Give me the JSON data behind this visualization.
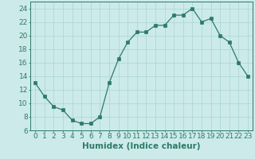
{
  "x": [
    0,
    1,
    2,
    3,
    4,
    5,
    6,
    7,
    8,
    9,
    10,
    11,
    12,
    13,
    14,
    15,
    16,
    17,
    18,
    19,
    20,
    21,
    22,
    23
  ],
  "y": [
    13.0,
    11.0,
    9.5,
    9.0,
    7.5,
    7.0,
    7.0,
    8.0,
    13.0,
    16.5,
    19.0,
    20.5,
    20.5,
    21.5,
    21.5,
    23.0,
    23.0,
    24.0,
    22.0,
    22.5,
    20.0,
    19.0,
    16.0,
    14.0
  ],
  "xlabel": "Humidex (Indice chaleur)",
  "ylim": [
    6,
    25
  ],
  "yticks": [
    6,
    8,
    10,
    12,
    14,
    16,
    18,
    20,
    22,
    24
  ],
  "xticks": [
    0,
    1,
    2,
    3,
    4,
    5,
    6,
    7,
    8,
    9,
    10,
    11,
    12,
    13,
    14,
    15,
    16,
    17,
    18,
    19,
    20,
    21,
    22,
    23
  ],
  "line_color": "#2d7a68",
  "marker_color": "#2d7a68",
  "bg_color": "#cceaea",
  "grid_color": "#aad4d4",
  "tick_label_fontsize": 6.5,
  "xlabel_fontsize": 7.5
}
